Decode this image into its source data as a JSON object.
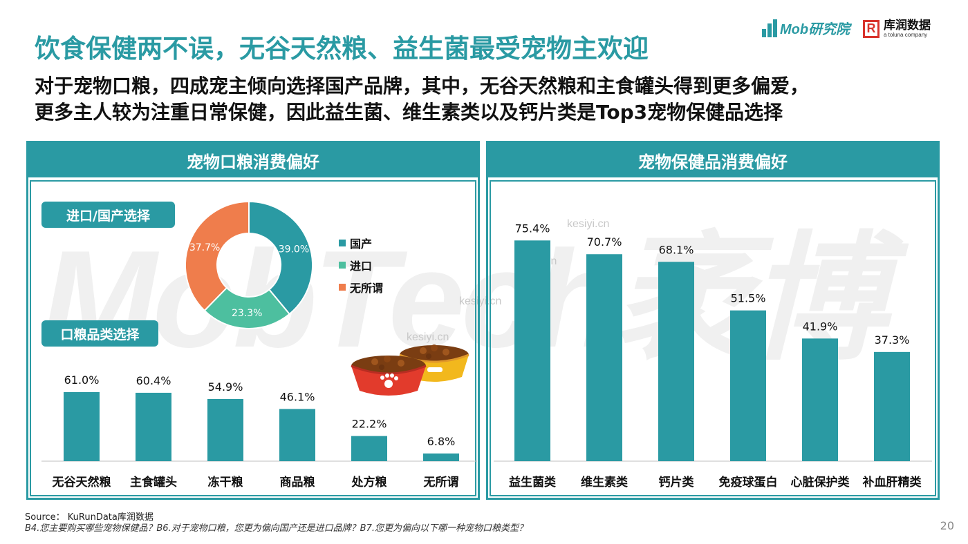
{
  "header": {
    "title": "饮食保健两不误，无谷天然粮、益生菌最受宠物主欢迎",
    "subtitle_line1": "对于宠物口粮，四成宠主倾向选择国产品牌，其中，无谷天然粮和主食罐头得到更多偏爱，",
    "subtitle_line2": "更多主人较为注重日常保健，因此益生菌、维生素类以及钙片类是Top3宠物保健品选择",
    "logo_mob": "Mob研究院",
    "logo_kurun_mark": "R",
    "logo_kurun_name": "库润数据",
    "logo_kurun_sub": "a toluna company"
  },
  "watermark": {
    "text": "MobTech袤博",
    "site": "kesiyi.cn"
  },
  "left_panel": {
    "title": "宠物口粮消费偏好",
    "donut_pill": "进口/国产选择",
    "bar_pill": "口粮品类选择",
    "legend": [
      {
        "label": "国产",
        "color": "#2a9aa3"
      },
      {
        "label": "进口",
        "color": "#4dbf9f"
      },
      {
        "label": "无所谓",
        "color": "#ef7d4c"
      }
    ]
  },
  "right_panel": {
    "title": "宠物保健品消费偏好"
  },
  "footer": {
    "source": "Source： KuRunData库润数据",
    "questions": "B4.您主要购买哪些宠物保健品？B6.对于宠物口粮，您更为偏向国产还是进口品牌？B7.您更为偏向以下哪一种宠物口粮类型？",
    "page_number": "20"
  },
  "colors": {
    "accent": "#2a9aa3",
    "teal_light": "#4dbf9f",
    "orange": "#ef7d4c"
  },
  "chart_data": [
    {
      "type": "pie",
      "title": "进口/国产选择",
      "categories": [
        "国产",
        "进口",
        "无所谓"
      ],
      "values": [
        39.0,
        23.3,
        37.7
      ],
      "labels": [
        "39.0%",
        "23.3%",
        "37.7%"
      ],
      "colors": [
        "#2a9aa3",
        "#4dbf9f",
        "#ef7d4c"
      ],
      "legend": "right"
    },
    {
      "type": "bar",
      "title": "口粮品类选择",
      "categories": [
        "无谷天然粮",
        "主食罐头",
        "冻干粮",
        "商品粮",
        "处方粮",
        "无所谓"
      ],
      "values": [
        61.0,
        60.4,
        54.9,
        46.1,
        22.2,
        6.8
      ],
      "labels": [
        "61.0%",
        "60.4%",
        "54.9%",
        "46.1%",
        "22.2%",
        "6.8%"
      ],
      "color": "#2a9aa3"
    },
    {
      "type": "bar",
      "title": "宠物保健品消费偏好",
      "categories": [
        "益生菌类",
        "维生素类",
        "钙片类",
        "免疫球蛋白",
        "心脏保护类",
        "补血肝精类"
      ],
      "values": [
        75.4,
        70.7,
        68.1,
        51.5,
        41.9,
        37.3
      ],
      "labels": [
        "75.4%",
        "70.7%",
        "68.1%",
        "51.5%",
        "41.9%",
        "37.3%"
      ],
      "color": "#2a9aa3"
    }
  ]
}
